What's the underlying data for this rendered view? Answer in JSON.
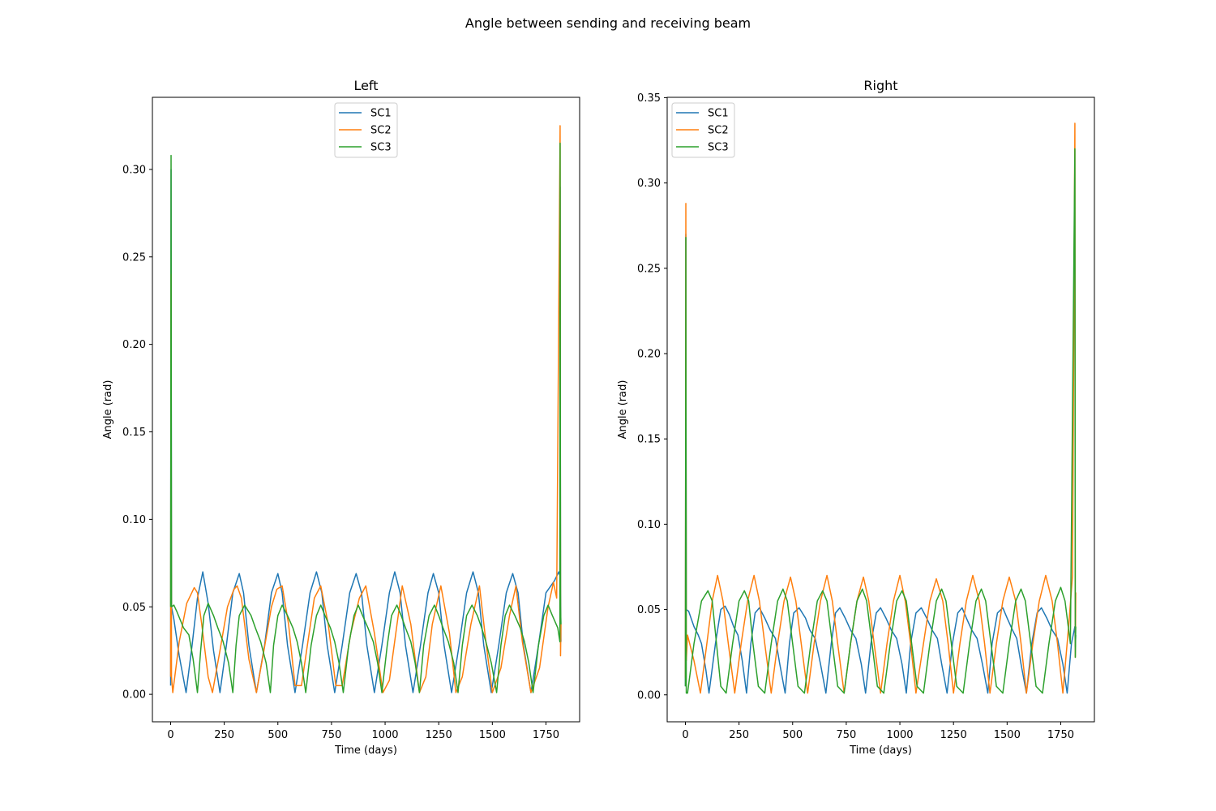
{
  "figure": {
    "suptitle": "Angle between sending and receiving beam"
  },
  "colors": {
    "SC1": "#1f77b4",
    "SC2": "#ff7f0e",
    "SC3": "#2ca02c",
    "axes": "#000000",
    "background": "#ffffff"
  },
  "chart_data": [
    {
      "type": "line",
      "title": "Left",
      "xlabel": "Time (days)",
      "ylabel": "Angle (rad)",
      "xlim": [
        -85,
        1907
      ],
      "ylim": [
        -0.0157,
        0.3412
      ],
      "xticks": [
        0,
        250,
        500,
        750,
        1000,
        1250,
        1500,
        1750
      ],
      "yticks": [
        0.0,
        0.05,
        0.1,
        0.15,
        0.2,
        0.25,
        0.3
      ],
      "ytick_labels": [
        "0.00",
        "0.05",
        "0.10",
        "0.15",
        "0.20",
        "0.25",
        "0.30"
      ],
      "grid": false,
      "legend": "upper center",
      "series": [
        {
          "name": "SC1",
          "x": [
            0,
            2,
            4,
            15,
            40,
            72,
            100,
            125,
            150,
            175,
            200,
            230,
            260,
            290,
            320,
            340,
            365,
            400,
            438,
            470,
            500,
            520,
            545,
            580,
            615,
            650,
            680,
            705,
            730,
            765,
            800,
            835,
            865,
            890,
            915,
            950,
            985,
            1020,
            1045,
            1070,
            1095,
            1130,
            1165,
            1200,
            1225,
            1250,
            1275,
            1310,
            1345,
            1380,
            1410,
            1435,
            1460,
            1495,
            1530,
            1565,
            1595,
            1620,
            1645,
            1680,
            1715,
            1750,
            1790,
            1810,
            1815,
            1816,
            1818,
            1820
          ],
          "y": [
            0.005,
            0.3,
            0.05,
            0.043,
            0.022,
            0.001,
            0.028,
            0.055,
            0.07,
            0.052,
            0.025,
            0.001,
            0.028,
            0.058,
            0.069,
            0.058,
            0.028,
            0.001,
            0.028,
            0.058,
            0.069,
            0.058,
            0.028,
            0.001,
            0.028,
            0.058,
            0.07,
            0.058,
            0.028,
            0.001,
            0.028,
            0.058,
            0.069,
            0.058,
            0.028,
            0.001,
            0.028,
            0.058,
            0.07,
            0.058,
            0.028,
            0.001,
            0.028,
            0.058,
            0.069,
            0.058,
            0.028,
            0.001,
            0.028,
            0.058,
            0.07,
            0.058,
            0.028,
            0.001,
            0.028,
            0.058,
            0.069,
            0.058,
            0.028,
            0.001,
            0.028,
            0.058,
            0.065,
            0.07,
            0.068,
            0.29,
            0.06,
            0.03
          ]
        },
        {
          "name": "SC2",
          "x": [
            0,
            2,
            4,
            10,
            40,
            75,
            110,
            125,
            145,
            175,
            195,
            230,
            265,
            295,
            310,
            330,
            365,
            400,
            435,
            470,
            495,
            520,
            550,
            580,
            610,
            640,
            670,
            700,
            735,
            770,
            800,
            840,
            880,
            910,
            950,
            990,
            1020,
            1050,
            1080,
            1120,
            1160,
            1190,
            1220,
            1260,
            1300,
            1330,
            1360,
            1400,
            1440,
            1470,
            1500,
            1540,
            1580,
            1610,
            1640,
            1680,
            1720,
            1760,
            1785,
            1800,
            1816,
            1818,
            1820
          ],
          "y": [
            0.01,
            0.24,
            0.01,
            0.001,
            0.03,
            0.052,
            0.061,
            0.058,
            0.04,
            0.01,
            0.001,
            0.025,
            0.05,
            0.06,
            0.062,
            0.055,
            0.02,
            0.001,
            0.025,
            0.05,
            0.06,
            0.062,
            0.04,
            0.005,
            0.005,
            0.03,
            0.055,
            0.062,
            0.04,
            0.005,
            0.005,
            0.035,
            0.055,
            0.062,
            0.035,
            0.001,
            0.008,
            0.035,
            0.062,
            0.04,
            0.001,
            0.01,
            0.04,
            0.062,
            0.035,
            0.001,
            0.01,
            0.04,
            0.062,
            0.03,
            0.001,
            0.015,
            0.045,
            0.062,
            0.03,
            0.001,
            0.015,
            0.05,
            0.064,
            0.055,
            0.325,
            0.022,
            0.04
          ]
        },
        {
          "name": "SC3",
          "x": [
            0,
            2,
            4,
            15,
            30,
            60,
            85,
            105,
            125,
            140,
            155,
            175,
            200,
            220,
            245,
            270,
            290,
            305,
            320,
            345,
            375,
            395,
            420,
            445,
            465,
            480,
            500,
            520,
            545,
            570,
            590,
            610,
            630,
            655,
            680,
            700,
            720,
            745,
            765,
            785,
            805,
            830,
            855,
            875,
            895,
            920,
            945,
            965,
            985,
            1010,
            1030,
            1055,
            1075,
            1095,
            1120,
            1140,
            1160,
            1180,
            1205,
            1230,
            1250,
            1270,
            1295,
            1320,
            1340,
            1360,
            1380,
            1405,
            1430,
            1450,
            1470,
            1495,
            1520,
            1540,
            1560,
            1580,
            1605,
            1630,
            1650,
            1670,
            1690,
            1715,
            1740,
            1760,
            1780,
            1805,
            1815,
            1816,
            1818,
            1820
          ],
          "y": [
            0.05,
            0.308,
            0.05,
            0.051,
            0.047,
            0.038,
            0.034,
            0.02,
            0.001,
            0.025,
            0.045,
            0.052,
            0.045,
            0.038,
            0.03,
            0.018,
            0.001,
            0.028,
            0.045,
            0.051,
            0.045,
            0.038,
            0.03,
            0.018,
            0.001,
            0.028,
            0.045,
            0.051,
            0.045,
            0.038,
            0.03,
            0.018,
            0.001,
            0.028,
            0.045,
            0.051,
            0.045,
            0.038,
            0.03,
            0.018,
            0.001,
            0.028,
            0.045,
            0.051,
            0.045,
            0.038,
            0.03,
            0.018,
            0.001,
            0.028,
            0.045,
            0.051,
            0.045,
            0.038,
            0.03,
            0.018,
            0.001,
            0.028,
            0.045,
            0.051,
            0.045,
            0.038,
            0.03,
            0.018,
            0.001,
            0.028,
            0.045,
            0.051,
            0.045,
            0.038,
            0.03,
            0.018,
            0.001,
            0.028,
            0.045,
            0.051,
            0.045,
            0.038,
            0.03,
            0.018,
            0.001,
            0.028,
            0.045,
            0.051,
            0.045,
            0.038,
            0.03,
            0.315,
            0.05,
            0.04
          ]
        }
      ]
    },
    {
      "type": "line",
      "title": "Right",
      "xlabel": "Time (days)",
      "ylabel": "Angle (rad)",
      "xlim": [
        -85,
        1907
      ],
      "ylim": [
        -0.0158,
        0.3502
      ],
      "xticks": [
        0,
        250,
        500,
        750,
        1000,
        1250,
        1500,
        1750
      ],
      "yticks": [
        0.0,
        0.05,
        0.1,
        0.15,
        0.2,
        0.25,
        0.3,
        0.35
      ],
      "ytick_labels": [
        "0.00",
        "0.05",
        "0.10",
        "0.15",
        "0.20",
        "0.25",
        "0.30",
        "0.35"
      ],
      "grid": false,
      "legend": "upper left",
      "series": [
        {
          "name": "SC1",
          "x": [
            0,
            2,
            4,
            15,
            40,
            60,
            75,
            95,
            110,
            140,
            165,
            185,
            205,
            225,
            245,
            265,
            285,
            305,
            325,
            345,
            370,
            395,
            420,
            440,
            465,
            485,
            505,
            530,
            560,
            580,
            605,
            630,
            655,
            680,
            700,
            720,
            745,
            770,
            795,
            820,
            840,
            865,
            890,
            910,
            935,
            960,
            985,
            1010,
            1030,
            1050,
            1075,
            1100,
            1125,
            1150,
            1175,
            1195,
            1220,
            1245,
            1270,
            1290,
            1310,
            1335,
            1360,
            1385,
            1410,
            1430,
            1455,
            1480,
            1500,
            1525,
            1545,
            1565,
            1590,
            1615,
            1640,
            1660,
            1685,
            1710,
            1735,
            1760,
            1780,
            1800,
            1816,
            1818,
            1820
          ],
          "y": [
            0.005,
            0.27,
            0.05,
            0.049,
            0.04,
            0.035,
            0.03,
            0.015,
            0.001,
            0.03,
            0.05,
            0.052,
            0.047,
            0.04,
            0.035,
            0.02,
            0.001,
            0.03,
            0.048,
            0.051,
            0.045,
            0.038,
            0.033,
            0.018,
            0.001,
            0.03,
            0.048,
            0.051,
            0.045,
            0.038,
            0.033,
            0.018,
            0.001,
            0.03,
            0.048,
            0.051,
            0.045,
            0.038,
            0.033,
            0.018,
            0.001,
            0.03,
            0.048,
            0.051,
            0.045,
            0.038,
            0.033,
            0.018,
            0.001,
            0.03,
            0.048,
            0.051,
            0.045,
            0.038,
            0.033,
            0.018,
            0.001,
            0.03,
            0.048,
            0.051,
            0.045,
            0.038,
            0.033,
            0.018,
            0.001,
            0.03,
            0.048,
            0.051,
            0.045,
            0.038,
            0.033,
            0.018,
            0.001,
            0.03,
            0.048,
            0.051,
            0.045,
            0.038,
            0.033,
            0.018,
            0.001,
            0.03,
            0.04,
            0.028,
            0.035
          ]
        },
        {
          "name": "SC2",
          "x": [
            0,
            2,
            4,
            10,
            40,
            70,
            100,
            125,
            150,
            175,
            200,
            230,
            260,
            290,
            320,
            345,
            370,
            400,
            430,
            460,
            490,
            515,
            540,
            570,
            600,
            630,
            660,
            685,
            710,
            740,
            770,
            800,
            830,
            855,
            880,
            910,
            940,
            970,
            1000,
            1025,
            1050,
            1075,
            1110,
            1140,
            1170,
            1200,
            1225,
            1250,
            1280,
            1310,
            1340,
            1370,
            1395,
            1420,
            1450,
            1480,
            1510,
            1540,
            1565,
            1590,
            1620,
            1650,
            1680,
            1710,
            1735,
            1760,
            1790,
            1805,
            1816,
            1818,
            1820
          ],
          "y": [
            0.01,
            0.288,
            0.02,
            0.035,
            0.02,
            0.001,
            0.03,
            0.055,
            0.07,
            0.055,
            0.03,
            0.001,
            0.03,
            0.055,
            0.07,
            0.055,
            0.03,
            0.001,
            0.03,
            0.055,
            0.069,
            0.055,
            0.03,
            0.001,
            0.03,
            0.055,
            0.07,
            0.055,
            0.03,
            0.001,
            0.03,
            0.055,
            0.069,
            0.055,
            0.03,
            0.001,
            0.03,
            0.055,
            0.07,
            0.055,
            0.03,
            0.001,
            0.03,
            0.055,
            0.068,
            0.055,
            0.03,
            0.001,
            0.03,
            0.055,
            0.07,
            0.055,
            0.03,
            0.001,
            0.03,
            0.055,
            0.069,
            0.055,
            0.03,
            0.001,
            0.03,
            0.055,
            0.07,
            0.055,
            0.03,
            0.001,
            0.045,
            0.07,
            0.335,
            0.022,
            0.06
          ]
        },
        {
          "name": "SC3",
          "x": [
            0,
            2,
            4,
            10,
            40,
            75,
            105,
            125,
            145,
            165,
            190,
            220,
            250,
            275,
            295,
            315,
            340,
            370,
            400,
            430,
            455,
            475,
            500,
            525,
            555,
            585,
            615,
            640,
            660,
            685,
            710,
            740,
            770,
            800,
            825,
            845,
            870,
            895,
            925,
            955,
            985,
            1010,
            1030,
            1055,
            1080,
            1110,
            1140,
            1170,
            1195,
            1215,
            1240,
            1265,
            1295,
            1325,
            1355,
            1380,
            1400,
            1425,
            1450,
            1480,
            1510,
            1540,
            1565,
            1585,
            1610,
            1635,
            1665,
            1695,
            1725,
            1750,
            1770,
            1795,
            1816,
            1818,
            1820
          ],
          "y": [
            0.005,
            0.268,
            0.001,
            0.001,
            0.03,
            0.055,
            0.061,
            0.055,
            0.03,
            0.005,
            0.001,
            0.03,
            0.055,
            0.061,
            0.055,
            0.03,
            0.005,
            0.001,
            0.03,
            0.055,
            0.062,
            0.055,
            0.03,
            0.005,
            0.001,
            0.03,
            0.055,
            0.061,
            0.055,
            0.03,
            0.005,
            0.001,
            0.03,
            0.055,
            0.062,
            0.055,
            0.03,
            0.005,
            0.001,
            0.03,
            0.055,
            0.061,
            0.055,
            0.03,
            0.005,
            0.001,
            0.03,
            0.055,
            0.062,
            0.055,
            0.03,
            0.005,
            0.001,
            0.03,
            0.055,
            0.062,
            0.055,
            0.03,
            0.005,
            0.001,
            0.03,
            0.055,
            0.062,
            0.055,
            0.03,
            0.005,
            0.001,
            0.03,
            0.055,
            0.063,
            0.055,
            0.03,
            0.32,
            0.022,
            0.04
          ]
        }
      ]
    }
  ]
}
